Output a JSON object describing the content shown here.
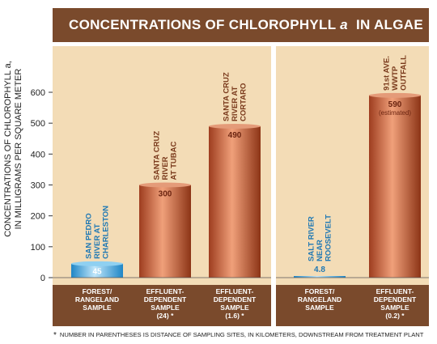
{
  "chart_data": {
    "type": "bar",
    "title": "CONCENTRATIONS OF CHLOROPHYLL a IN ALGAE",
    "title_parts": [
      "CONCENTRATIONS OF CHLOROPHYLL",
      "a",
      "IN ALGAE"
    ],
    "ylabel_lines": [
      "CONCENTRATIONS OF CHLOROPHYLL a,",
      "IN MILLIGRAMS PER SQUARE METER"
    ],
    "ylim": [
      0,
      650
    ],
    "yticks": [
      0,
      100,
      200,
      300,
      400,
      500,
      600
    ],
    "grid": false,
    "groups": [
      {
        "bars": [
          {
            "site": [
              "SAN PEDRO",
              "RIVER AT",
              "CHARLESTON"
            ],
            "value": 45,
            "value_label": "45",
            "category": [
              "FOREST/",
              "RANGELAND",
              "SAMPLE"
            ],
            "color": "#3fa9dd"
          },
          {
            "site": [
              "SANTA CRUZ",
              "RIVER",
              "AT TUBAC"
            ],
            "value": 300,
            "value_label": "300",
            "category": [
              "EFFLUENT-",
              "DEPENDENT",
              "SAMPLE",
              "(24) *"
            ],
            "color": "#c25a33"
          },
          {
            "site": [
              "SANTA CRUZ",
              "RIVER AT",
              "CORTARO"
            ],
            "value": 490,
            "value_label": "490",
            "category": [
              "EFFLUENT-",
              "DEPENDENT",
              "SAMPLE",
              "(1.6) *"
            ],
            "color": "#c25a33"
          }
        ]
      },
      {
        "bars": [
          {
            "site": [
              "SALT RIVER",
              "NEAR",
              "ROOSEVELT"
            ],
            "value": 4.8,
            "value_label": "4.8",
            "category": [
              "FOREST/",
              "RANGELAND",
              "SAMPLE"
            ],
            "color": "#3fa9dd"
          },
          {
            "site": [
              "91st AVE.",
              "WWTP",
              "OUTFALL"
            ],
            "value": 590,
            "value_label": "590",
            "value_note": "(estimated)",
            "category": [
              "EFFLUENT-",
              "DEPENDENT",
              "SAMPLE",
              "(0.2) *"
            ],
            "color": "#c25a33"
          }
        ]
      }
    ],
    "footnote": "NUMBER IN PARENTHESES IS DISTANCE OF SAMPLING SITES, IN KILOMETERS, DOWNSTREAM FROM TREATMENT PLANT",
    "footnote_marker": "*"
  },
  "colors": {
    "title_band": "#7a4a2c",
    "panel_background": "#f3dcb6",
    "category_band": "#7a4a2c",
    "site_label_brown": "#7a3a1c",
    "site_label_blue": "#1f78b4"
  }
}
